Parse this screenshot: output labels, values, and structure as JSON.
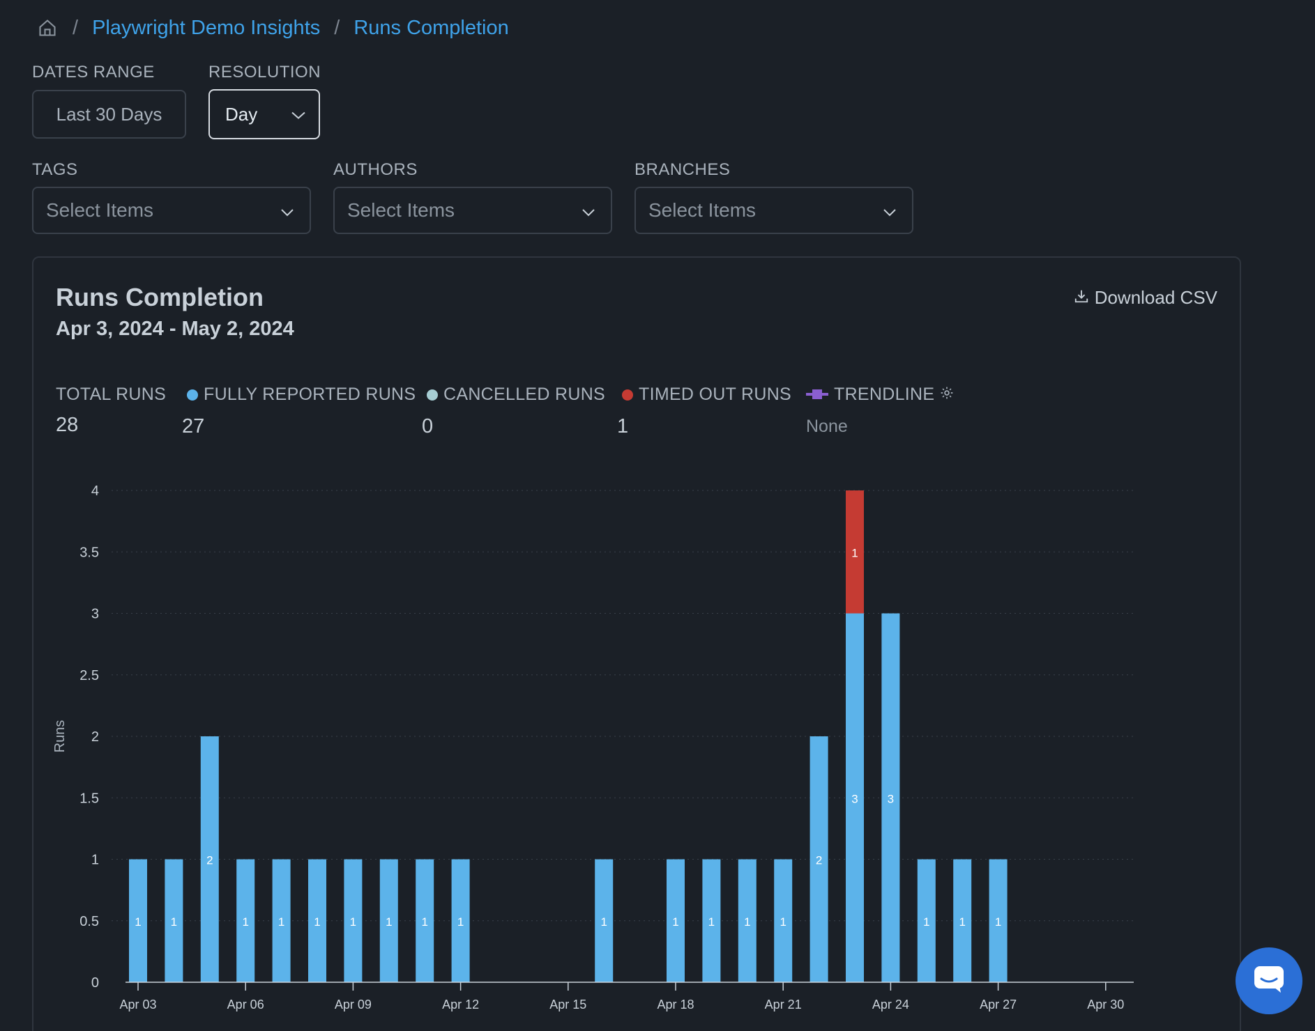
{
  "breadcrumb": {
    "home_icon": "home-icon",
    "separator": "/",
    "items": [
      "Playwright Demo Insights",
      "Runs Completion"
    ]
  },
  "filters": {
    "dates_range": {
      "label": "DATES RANGE",
      "value": "Last 30 Days"
    },
    "resolution": {
      "label": "RESOLUTION",
      "value": "Day"
    },
    "tags": {
      "label": "TAGS",
      "placeholder": "Select Items"
    },
    "authors": {
      "label": "AUTHORS",
      "placeholder": "Select Items"
    },
    "branches": {
      "label": "BRANCHES",
      "placeholder": "Select Items"
    }
  },
  "card": {
    "title": "Runs Completion",
    "date_range": "Apr 3, 2024 - May 2, 2024",
    "download_label": "Download CSV"
  },
  "stats": {
    "total": {
      "label": "TOTAL RUNS",
      "value": "28"
    },
    "fully_reported": {
      "label": "FULLY REPORTED RUNS",
      "value": "27",
      "color": "#5cb3ea"
    },
    "cancelled": {
      "label": "CANCELLED RUNS",
      "value": "0",
      "color": "#a6cdd3"
    },
    "timed_out": {
      "label": "TIMED OUT RUNS",
      "value": "1",
      "color": "#c53b33"
    },
    "trendline": {
      "label": "TRENDLINE",
      "value": "None",
      "color": "#8a5fd1"
    }
  },
  "chart_data": {
    "type": "bar",
    "stacked": true,
    "ylabel": "Runs",
    "ylim": [
      0,
      4
    ],
    "yticks": [
      "0",
      "0.5",
      "1",
      "1.5",
      "2",
      "2.5",
      "3",
      "3.5",
      "4"
    ],
    "xtick_labels": [
      "Apr 03",
      "Apr 06",
      "Apr 09",
      "Apr 12",
      "Apr 15",
      "Apr 18",
      "Apr 21",
      "Apr 24",
      "Apr 27",
      "Apr 30"
    ],
    "categories": [
      "Apr 03",
      "Apr 04",
      "Apr 05",
      "Apr 06",
      "Apr 07",
      "Apr 08",
      "Apr 09",
      "Apr 10",
      "Apr 11",
      "Apr 12",
      "Apr 13",
      "Apr 14",
      "Apr 15",
      "Apr 16",
      "Apr 17",
      "Apr 18",
      "Apr 19",
      "Apr 20",
      "Apr 21",
      "Apr 22",
      "Apr 23",
      "Apr 24",
      "Apr 25",
      "Apr 26",
      "Apr 27",
      "Apr 28",
      "Apr 29",
      "Apr 30",
      "May 01",
      "May 02"
    ],
    "series": [
      {
        "name": "FULLY REPORTED RUNS",
        "color": "#5cb3ea",
        "values": [
          1,
          1,
          2,
          1,
          1,
          1,
          1,
          1,
          1,
          1,
          0,
          0,
          0,
          1,
          0,
          1,
          1,
          1,
          1,
          2,
          3,
          3,
          1,
          1,
          1,
          0,
          0,
          0,
          0,
          0
        ]
      },
      {
        "name": "TIMED OUT RUNS",
        "color": "#c53b33",
        "values": [
          0,
          0,
          0,
          0,
          0,
          0,
          0,
          0,
          0,
          0,
          0,
          0,
          0,
          0,
          0,
          0,
          0,
          0,
          0,
          0,
          1,
          0,
          0,
          0,
          0,
          0,
          0,
          0,
          0,
          0
        ]
      }
    ],
    "grid": true
  }
}
